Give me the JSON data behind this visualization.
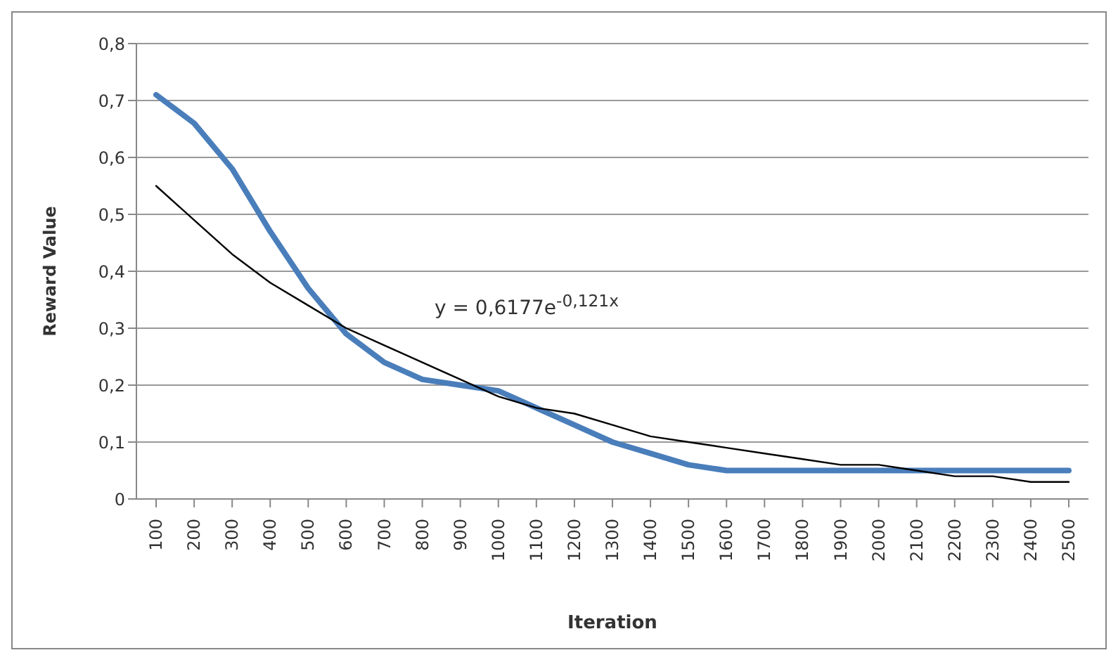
{
  "chart_data": {
    "type": "line",
    "xlabel": "Iteration",
    "ylabel": "Reward Value",
    "categories": [
      "100",
      "200",
      "300",
      "400",
      "500",
      "600",
      "700",
      "800",
      "900",
      "1000",
      "1100",
      "1200",
      "1300",
      "1400",
      "1500",
      "1600",
      "1700",
      "1800",
      "1900",
      "2000",
      "2100",
      "2200",
      "2300",
      "2400",
      "2500"
    ],
    "series": [
      {
        "color": "#4a7ebb",
        "values": [
          0.71,
          0.66,
          0.58,
          0.47,
          0.37,
          0.29,
          0.24,
          0.21,
          0.2,
          0.19,
          0.16,
          0.13,
          0.1,
          0.08,
          0.06,
          0.05,
          0.05,
          0.05,
          0.05,
          0.05,
          0.05,
          0.05,
          0.05,
          0.05,
          0.05
        ]
      },
      {
        "color": "#000000",
        "values": [
          0.55,
          0.49,
          0.43,
          0.38,
          0.34,
          0.3,
          0.27,
          0.24,
          0.21,
          0.18,
          0.16,
          0.15,
          0.13,
          0.11,
          0.1,
          0.09,
          0.08,
          0.07,
          0.06,
          0.06,
          0.05,
          0.04,
          0.04,
          0.03,
          0.03
        ]
      }
    ],
    "annotations": [
      "y = 0,6177e$^{-0,121x}$"
    ],
    "ylim": [
      0,
      0.8
    ],
    "yticks": [
      0,
      {
        "value": 0.1,
        "label": "0,1"
      },
      {
        "value": 0.2,
        "label": "0,2"
      },
      {
        "value": 0.3,
        "label": "0,3"
      },
      {
        "value": 0.4,
        "label": "0,4"
      },
      {
        "value": 0.5,
        "label": "0,5"
      },
      {
        "value": 0.6,
        "label": "0,6"
      },
      {
        "value": 0.7,
        "label": "0,7"
      },
      {
        "value": 0.8,
        "label": "0,8"
      }
    ],
    "grid": "y",
    "legend": false,
    "marker": "none",
    "line_style": "solid"
  }
}
